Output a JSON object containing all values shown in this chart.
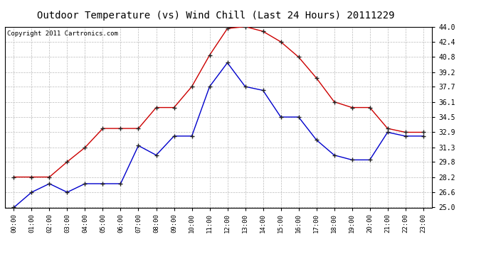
{
  "title": "Outdoor Temperature (vs) Wind Chill (Last 24 Hours) 20111229",
  "copyright": "Copyright 2011 Cartronics.com",
  "x_labels": [
    "00:00",
    "01:00",
    "02:00",
    "03:00",
    "04:00",
    "05:00",
    "06:00",
    "07:00",
    "08:00",
    "09:00",
    "10:00",
    "11:00",
    "12:00",
    "13:00",
    "14:00",
    "15:00",
    "16:00",
    "17:00",
    "18:00",
    "19:00",
    "20:00",
    "21:00",
    "22:00",
    "23:00"
  ],
  "temp_red": [
    28.2,
    28.2,
    28.2,
    29.8,
    31.3,
    33.3,
    33.3,
    33.3,
    35.5,
    35.5,
    37.7,
    41.0,
    43.8,
    44.0,
    43.5,
    42.4,
    40.8,
    38.6,
    36.1,
    35.5,
    35.5,
    33.3,
    32.9,
    32.9
  ],
  "wind_blue": [
    25.0,
    26.6,
    27.5,
    26.6,
    27.5,
    27.5,
    27.5,
    31.5,
    30.5,
    32.5,
    32.5,
    37.7,
    40.2,
    37.7,
    37.3,
    34.5,
    34.5,
    32.1,
    30.5,
    30.0,
    30.0,
    32.9,
    32.5,
    32.5
  ],
  "ylim": [
    25.0,
    44.0
  ],
  "yticks": [
    25.0,
    26.6,
    28.2,
    29.8,
    31.3,
    32.9,
    34.5,
    36.1,
    37.7,
    39.2,
    40.8,
    42.4,
    44.0
  ],
  "bg_color": "#ffffff",
  "plot_bg_color": "#ffffff",
  "grid_color": "#bbbbbb",
  "red_color": "#cc0000",
  "blue_color": "#0000cc",
  "title_fontsize": 10,
  "copyright_fontsize": 6.5
}
